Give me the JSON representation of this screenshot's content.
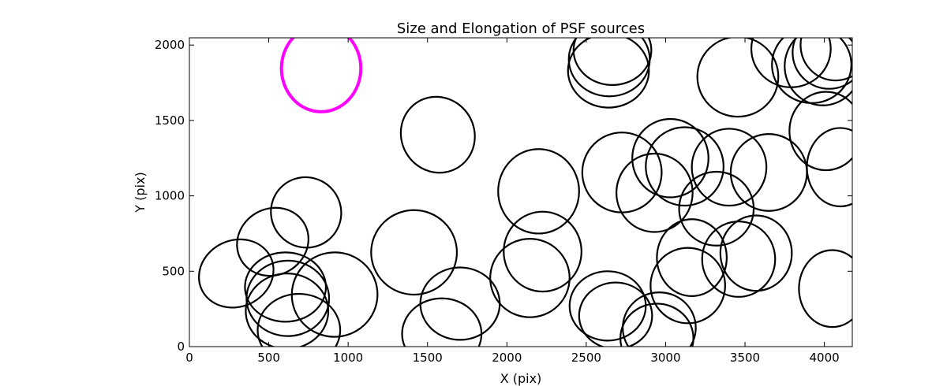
{
  "chart_data": {
    "type": "scatter",
    "title": "Size and Elongation of PSF sources",
    "xlabel": "X (pix)",
    "ylabel": "Y (pix)",
    "xlim": [
      0,
      4176
    ],
    "ylim": [
      0,
      2048
    ],
    "xticks": [
      0,
      500,
      1000,
      1500,
      2000,
      2500,
      3000,
      3500,
      4000
    ],
    "yticks": [
      0,
      500,
      1000,
      1500,
      2000
    ],
    "grid": false,
    "legend": "none",
    "marker": "ellipse",
    "colors": {
      "source": "#000000",
      "highlight": "#ff00ff"
    },
    "sources": [
      {
        "x": 830,
        "y": 1845,
        "w": 500,
        "h": 575,
        "angle": 0,
        "highlight": true
      },
      {
        "x": 295,
        "y": 485,
        "w": 480,
        "h": 440,
        "angle": -25
      },
      {
        "x": 525,
        "y": 695,
        "w": 460,
        "h": 440,
        "angle": -30
      },
      {
        "x": 735,
        "y": 890,
        "w": 440,
        "h": 470,
        "angle": -40
      },
      {
        "x": 605,
        "y": 395,
        "w": 510,
        "h": 460,
        "angle": 0
      },
      {
        "x": 620,
        "y": 320,
        "w": 520,
        "h": 500,
        "angle": 0
      },
      {
        "x": 615,
        "y": 235,
        "w": 520,
        "h": 500,
        "angle": 0
      },
      {
        "x": 690,
        "y": 110,
        "w": 520,
        "h": 480,
        "angle": 0
      },
      {
        "x": 915,
        "y": 345,
        "w": 540,
        "h": 560,
        "angle": -10
      },
      {
        "x": 1415,
        "y": 625,
        "w": 540,
        "h": 560,
        "angle": 0
      },
      {
        "x": 1565,
        "y": 1405,
        "w": 460,
        "h": 510,
        "angle": -30
      },
      {
        "x": 1705,
        "y": 285,
        "w": 500,
        "h": 480,
        "angle": 0
      },
      {
        "x": 1590,
        "y": 85,
        "w": 500,
        "h": 470,
        "angle": 0
      },
      {
        "x": 2145,
        "y": 455,
        "w": 500,
        "h": 520,
        "angle": 0
      },
      {
        "x": 2225,
        "y": 630,
        "w": 490,
        "h": 530,
        "angle": 0
      },
      {
        "x": 2200,
        "y": 1030,
        "w": 510,
        "h": 560,
        "angle": 0
      },
      {
        "x": 2635,
        "y": 270,
        "w": 480,
        "h": 460,
        "angle": 0
      },
      {
        "x": 2685,
        "y": 205,
        "w": 460,
        "h": 440,
        "angle": 0
      },
      {
        "x": 2725,
        "y": 1155,
        "w": 500,
        "h": 530,
        "angle": 0
      },
      {
        "x": 2640,
        "y": 1830,
        "w": 510,
        "h": 490,
        "angle": 0
      },
      {
        "x": 2645,
        "y": 1905,
        "w": 510,
        "h": 490,
        "angle": 0
      },
      {
        "x": 2665,
        "y": 1965,
        "w": 490,
        "h": 460,
        "angle": 0
      },
      {
        "x": 2930,
        "y": 1020,
        "w": 480,
        "h": 520,
        "angle": 0
      },
      {
        "x": 3030,
        "y": 1250,
        "w": 480,
        "h": 520,
        "angle": 0
      },
      {
        "x": 3120,
        "y": 1195,
        "w": 490,
        "h": 520,
        "angle": 0
      },
      {
        "x": 2960,
        "y": 125,
        "w": 460,
        "h": 470,
        "angle": 0
      },
      {
        "x": 2945,
        "y": 55,
        "w": 460,
        "h": 460,
        "angle": 0
      },
      {
        "x": 3165,
        "y": 590,
        "w": 440,
        "h": 510,
        "angle": 0
      },
      {
        "x": 3140,
        "y": 405,
        "w": 470,
        "h": 500,
        "angle": 0
      },
      {
        "x": 3320,
        "y": 915,
        "w": 470,
        "h": 490,
        "angle": 0
      },
      {
        "x": 3400,
        "y": 1190,
        "w": 470,
        "h": 510,
        "angle": 0
      },
      {
        "x": 3460,
        "y": 580,
        "w": 460,
        "h": 500,
        "angle": 0
      },
      {
        "x": 3570,
        "y": 620,
        "w": 450,
        "h": 500,
        "angle": 0
      },
      {
        "x": 3650,
        "y": 1155,
        "w": 480,
        "h": 510,
        "angle": 0
      },
      {
        "x": 3455,
        "y": 1790,
        "w": 510,
        "h": 530,
        "angle": 0
      },
      {
        "x": 3790,
        "y": 1975,
        "w": 500,
        "h": 510,
        "angle": 0
      },
      {
        "x": 3920,
        "y": 1870,
        "w": 500,
        "h": 510,
        "angle": 0
      },
      {
        "x": 3990,
        "y": 1860,
        "w": 480,
        "h": 520,
        "angle": 0
      },
      {
        "x": 4030,
        "y": 1950,
        "w": 460,
        "h": 480,
        "angle": 0
      },
      {
        "x": 4070,
        "y": 2000,
        "w": 440,
        "h": 470,
        "angle": 0
      },
      {
        "x": 4010,
        "y": 1430,
        "w": 460,
        "h": 520,
        "angle": 0
      },
      {
        "x": 4100,
        "y": 1190,
        "w": 420,
        "h": 520,
        "angle": 0
      },
      {
        "x": 4050,
        "y": 385,
        "w": 420,
        "h": 510,
        "angle": 0
      }
    ]
  }
}
